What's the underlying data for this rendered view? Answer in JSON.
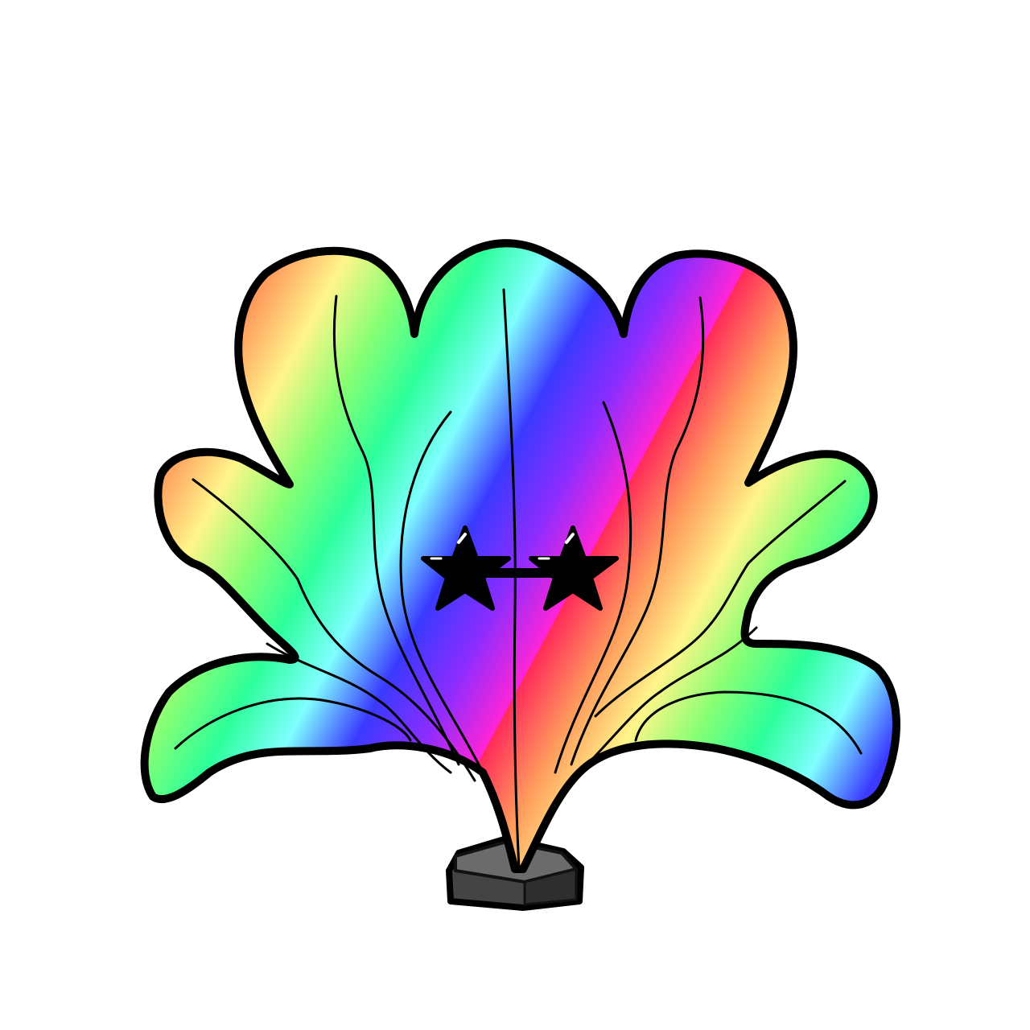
{
  "scene": {
    "background_color": "#ffffff",
    "subject": "rainbow-seaweed-plant-icon",
    "accessory": "star-sunglasses-icon",
    "base": "rock-icon"
  },
  "palette": {
    "outline": "#000000",
    "rainbow_stops": [
      "#ff2a5a",
      "#ff9a5c",
      "#fff58a",
      "#88ff74",
      "#2cff9a",
      "#7fffff",
      "#3a3aff",
      "#8a2dff",
      "#ff25d6"
    ],
    "rock_top": "#666666",
    "rock_side": "#333333",
    "glasses": "#000000",
    "glasses_highlight": "#ffffff"
  }
}
